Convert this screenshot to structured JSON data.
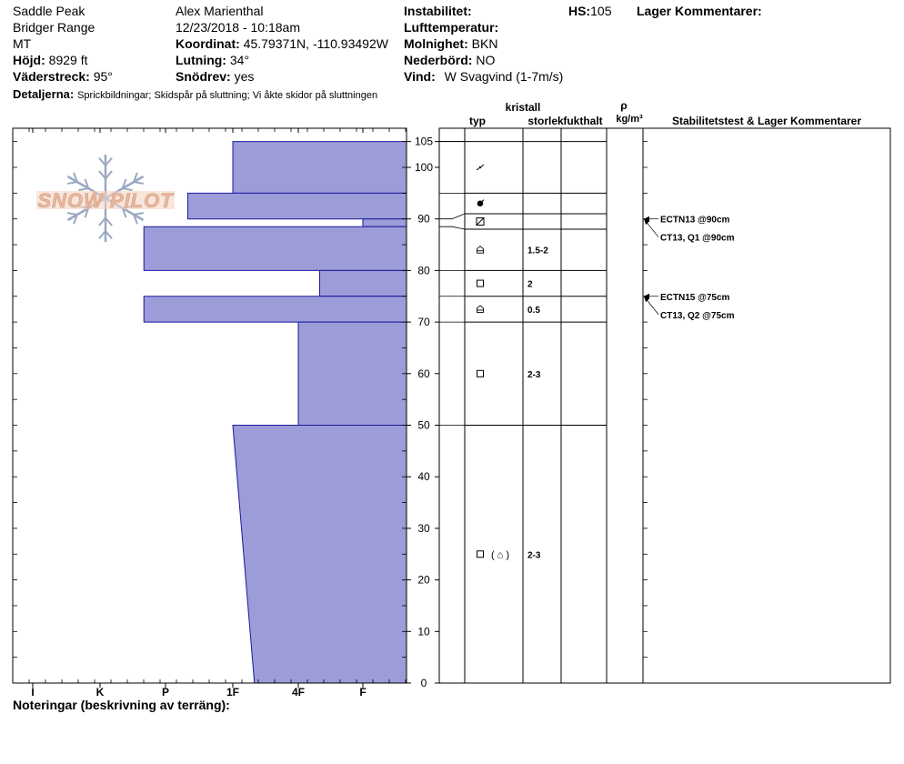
{
  "header": {
    "location": "Saddle Peak",
    "range": "Bridger Range",
    "state": "MT",
    "elevation_label": "Höjd:",
    "elevation_value": "8929 ft",
    "aspect_label": "Väderstreck:",
    "aspect_value": "95°",
    "details_label": "Detaljerna:",
    "details_value": "Sprickbildningar;  Skidspår på sluttning;  Vi åkte skidor på sluttningen",
    "observer": "Alex Marienthal",
    "datetime": "12/23/2018 - 10:18am",
    "coord_label": "Koordinat:",
    "coord_value": "45.79371N, -110.93492W",
    "slope_label": "Lutning:",
    "slope_value": "34°",
    "snowdrift_label": "Snödrev:",
    "snowdrift_value": "yes",
    "instability_label": "Instabilitet:",
    "airtemp_label": "Lufttemperatur:",
    "cloud_label": "Molnighet:",
    "cloud_value": "BKN",
    "precip_label": "Nederbörd:",
    "precip_value": "NO",
    "wind_label": "Vind:",
    "wind_value": "W Svagvind (1-7m/s)",
    "hs_label": "HS:",
    "hs_value": "105",
    "layer_comments_label": "Lager Kommentarer:"
  },
  "logo_text": "SNOW PILOT",
  "notes_label": "Noteringar (beskrivning av terräng):",
  "table_headers": {
    "kristall": "kristall",
    "typ": "typ",
    "storlek": "storlek",
    "fukthalt": "fukthalt",
    "rho": "ρ",
    "density_unit": "kg/m³",
    "stability": "Stabilitetstest & Lager Kommentarer"
  },
  "colors": {
    "hardness_fill": "#9c9cd8",
    "hardness_stroke": "#1a1aa0",
    "grid": "#000000",
    "logo": "#e8b9a0",
    "snowflake": "#9aa8c0"
  },
  "chart_data": {
    "type": "area",
    "title": "",
    "x_axis_label": "",
    "y_axis_label": "",
    "hardness_categories": [
      "I",
      "K",
      "P",
      "1F",
      "4F",
      "F"
    ],
    "depth_ticks": [
      0,
      10,
      20,
      30,
      40,
      50,
      60,
      70,
      80,
      90,
      100,
      105
    ],
    "ylim": [
      0,
      105
    ],
    "hardness_layers": [
      {
        "top": 105,
        "bottom": 95,
        "hardness_top": "1F",
        "hardness_bottom": "1F"
      },
      {
        "top": 95,
        "bottom": 90,
        "hardness_top": "P-",
        "hardness_bottom": "P-"
      },
      {
        "top": 90,
        "bottom": 88.5,
        "hardness_top": "F",
        "hardness_bottom": "F"
      },
      {
        "top": 88.5,
        "bottom": 80,
        "hardness_top": "P+",
        "hardness_bottom": "P+"
      },
      {
        "top": 80,
        "bottom": 75,
        "hardness_top": "4F-",
        "hardness_bottom": "4F-"
      },
      {
        "top": 75,
        "bottom": 70,
        "hardness_top": "P+",
        "hardness_bottom": "P+"
      },
      {
        "top": 70,
        "bottom": 50,
        "hardness_top": "4F",
        "hardness_bottom": "4F"
      },
      {
        "top": 50,
        "bottom": 0,
        "hardness_top": "1F",
        "hardness_bottom": "1F-"
      }
    ],
    "layers": [
      {
        "top": 105,
        "bottom": 95,
        "grain_symbol": "decomposing",
        "size": ""
      },
      {
        "top": 95,
        "bottom": 91,
        "grain_symbol": "ice",
        "size": ""
      },
      {
        "top": 91,
        "bottom": 88,
        "grain_symbol": "crust",
        "size": ""
      },
      {
        "top": 88,
        "bottom": 80,
        "grain_symbol": "depth-hoar",
        "size": "1.5-2"
      },
      {
        "top": 80,
        "bottom": 75,
        "grain_symbol": "facets",
        "size": "2"
      },
      {
        "top": 75,
        "bottom": 70,
        "grain_symbol": "depth-hoar",
        "size": "0.5"
      },
      {
        "top": 70,
        "bottom": 50,
        "grain_symbol": "facets",
        "size": "2-3"
      },
      {
        "top": 50,
        "bottom": 0,
        "grain_symbol": "facets-with-depth-hoar",
        "grain_extra": "( ⌂ )",
        "size": "2-3"
      }
    ],
    "stability_tests": [
      {
        "depth": 90,
        "label": "ECTN13 @90cm"
      },
      {
        "depth": 90,
        "label": "CT13, Q1 @90cm"
      },
      {
        "depth": 75,
        "label": "ECTN15 @75cm"
      },
      {
        "depth": 75,
        "label": "CT13, Q2 @75cm"
      }
    ]
  }
}
